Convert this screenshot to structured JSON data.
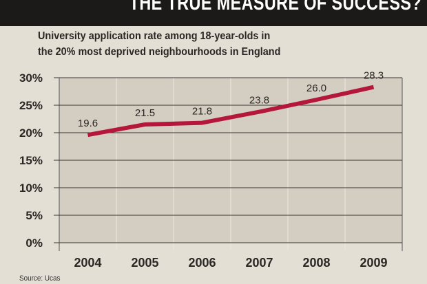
{
  "header": {
    "title": "THE TRUE MEASURE OF SUCCESS?"
  },
  "chart_data": {
    "type": "line",
    "title": "University application rate among 18-year-olds in the 20% most deprived neighbourhoods in England",
    "title_lines": [
      "University application rate among 18-year-olds in",
      "the 20% most deprived neighbourhoods in England"
    ],
    "categories": [
      "2004",
      "2005",
      "2006",
      "2007",
      "2008",
      "2009"
    ],
    "series": [
      {
        "name": "Application rate",
        "values": [
          19.6,
          21.5,
          21.8,
          23.8,
          26.0,
          28.3
        ],
        "labels": [
          "19.6",
          "21.5",
          "21.8",
          "23.8",
          "26.0",
          "28.3"
        ],
        "color": "#b5173b"
      }
    ],
    "yticks": [
      "0%",
      "5%",
      "10%",
      "15%",
      "20%",
      "25%",
      "30%"
    ],
    "ytick_values": [
      0,
      5,
      10,
      15,
      20,
      25,
      30
    ],
    "ylim": [
      0,
      30
    ],
    "xlabel": "",
    "ylabel": "",
    "grid": true,
    "source": "Source: Ucas"
  }
}
